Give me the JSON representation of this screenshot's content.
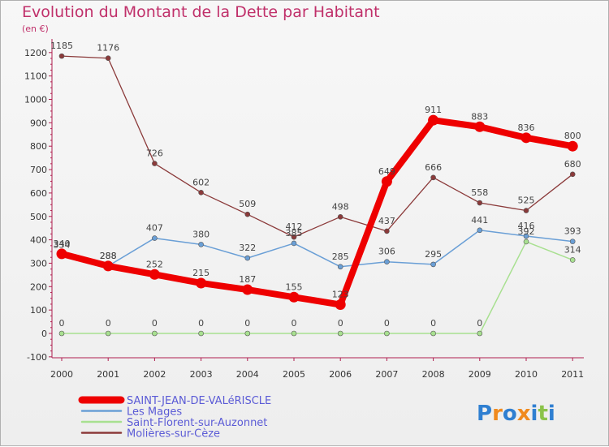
{
  "chart_data": {
    "type": "line",
    "title": "Evolution du Montant de la Dette par Habitant",
    "unit": "(en €)",
    "x": [
      "2000",
      "2001",
      "2002",
      "2003",
      "2004",
      "2005",
      "2006",
      "2007",
      "2008",
      "2009",
      "2010",
      "2011"
    ],
    "y_ticks": [
      "-100",
      "0",
      "100",
      "200",
      "300",
      "400",
      "500",
      "600",
      "700",
      "800",
      "900",
      "1000",
      "1100",
      "1200"
    ],
    "ylim": [
      -100,
      1200
    ],
    "grid": false,
    "legend_position": "bottom-left",
    "series": [
      {
        "name": "SAINT-JEAN-DE-VALéRISCLE",
        "color": "#ee0000",
        "width": 8,
        "marker": 6.5,
        "labels": true,
        "values": [
          340,
          288,
          252,
          215,
          187,
          155,
          123,
          649,
          911,
          883,
          836,
          800
        ]
      },
      {
        "name": "Les Mages",
        "color": "#6a9fd6",
        "width": 1.5,
        "marker": 3,
        "labels": true,
        "values": [
          334,
          288,
          407,
          380,
          322,
          385,
          285,
          306,
          295,
          441,
          416,
          393
        ]
      },
      {
        "name": "Saint-Florent-sur-Auzonnet",
        "color": "#a8e090",
        "width": 1.5,
        "marker": 3,
        "labels": true,
        "values": [
          0,
          0,
          0,
          0,
          0,
          0,
          0,
          0,
          0,
          0,
          392,
          314
        ]
      },
      {
        "name": "Molières-sur-Cèze",
        "color": "#8b3a3a",
        "width": 1.3,
        "marker": 3,
        "labels": true,
        "values": [
          1185,
          1176,
          726,
          602,
          509,
          412,
          498,
          437,
          666,
          558,
          525,
          680
        ]
      }
    ],
    "label_overrides": {
      "2-10": "392",
      "1-10": "416"
    }
  },
  "logo": {
    "text": "Proxiti",
    "letters": [
      "P",
      "r",
      "o",
      "x",
      "i",
      "t",
      "i"
    ],
    "colors": [
      "#2f7fd1",
      "#f08a1e",
      "#2f7fd1",
      "#f08a1e",
      "#2f7fd1",
      "#8bc34a",
      "#2f7fd1"
    ]
  }
}
